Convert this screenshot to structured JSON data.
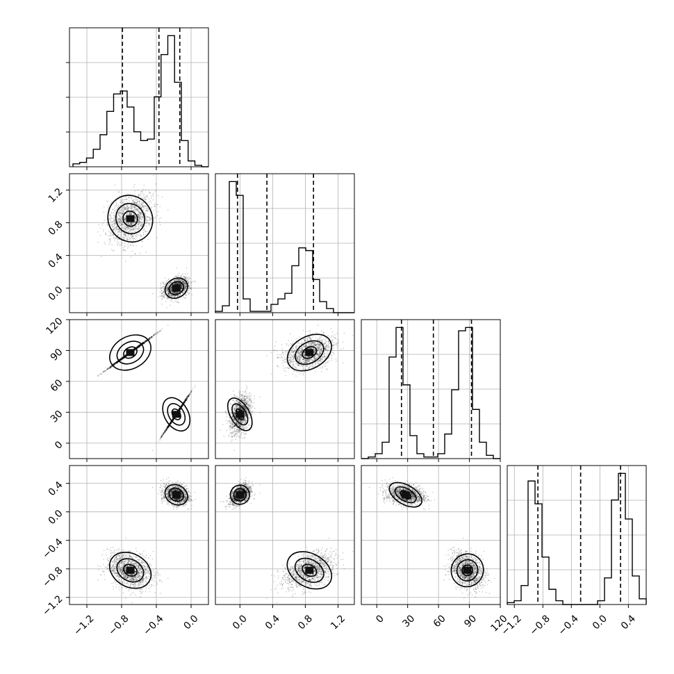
{
  "chart_data": {
    "type": "scatter",
    "grid": true,
    "variables": [
      {
        "range": [
          -1.4,
          0.2
        ],
        "ticks": [
          -1.2,
          -0.8,
          -0.4,
          0.0
        ],
        "tick_labels": [
          "−1.2",
          "−0.8",
          "−0.4",
          "0.0"
        ],
        "quantiles": [
          -0.79,
          -0.37,
          -0.13
        ],
        "hist_edges_range": [
          -1.36,
          0.2
        ],
        "hist_counts": [
          2,
          3,
          6,
          12,
          22,
          38,
          50,
          52,
          41,
          24,
          18,
          19,
          48,
          77,
          90,
          58,
          18,
          4,
          1,
          0
        ]
      },
      {
        "range": [
          -0.3,
          1.4
        ],
        "ticks": [
          0.0,
          0.4,
          0.8,
          1.2
        ],
        "tick_labels": [
          "0.0",
          "0.4",
          "0.8",
          "1.2"
        ],
        "quantiles": [
          -0.03,
          0.33,
          0.9
        ],
        "hist_edges_range": [
          -0.3,
          1.4
        ],
        "hist_counts": [
          1,
          5,
          95,
          85,
          10,
          1,
          1,
          1,
          6,
          10,
          14,
          34,
          47,
          45,
          24,
          8,
          3,
          0,
          0,
          0
        ]
      },
      {
        "range": [
          -15,
          120
        ],
        "ticks": [
          0,
          30,
          60,
          90,
          120
        ],
        "tick_labels": [
          "0",
          "30",
          "60",
          "90",
          "120"
        ],
        "quantiles": [
          24,
          55,
          92
        ],
        "hist_edges_range": [
          -15,
          120
        ],
        "hist_counts": [
          0,
          1,
          3,
          10,
          62,
          80,
          45,
          14,
          3,
          1,
          1,
          3,
          15,
          42,
          78,
          80,
          30,
          10,
          2,
          0
        ]
      },
      {
        "range": [
          -1.3,
          0.65
        ],
        "ticks": [
          -1.2,
          -0.8,
          -0.4,
          0.0,
          0.4
        ],
        "tick_labels": [
          "−1.2",
          "−0.8",
          "−0.4",
          "0.0",
          "0.4"
        ],
        "quantiles": [
          -0.87,
          -0.27,
          0.29
        ],
        "hist_edges_range": [
          -1.3,
          0.65
        ],
        "hist_counts": [
          1,
          2,
          10,
          65,
          53,
          25,
          8,
          2,
          0,
          0,
          0,
          0,
          0,
          2,
          14,
          55,
          69,
          45,
          15,
          3
        ]
      }
    ],
    "clusters": [
      {
        "means": [
          -0.7,
          0.85,
          88,
          -0.82
        ],
        "sds": [
          0.13,
          0.15,
          8,
          0.12
        ]
      },
      {
        "means": [
          -0.17,
          0.0,
          28,
          0.24
        ],
        "sds": [
          0.07,
          0.06,
          9,
          0.07
        ]
      }
    ],
    "contour_scales": [
      0.5,
      1.0,
      1.55
    ],
    "scatter_points_per_cluster": 1300
  }
}
